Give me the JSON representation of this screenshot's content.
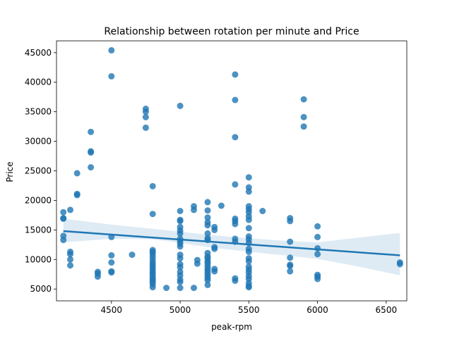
{
  "chart_data": {
    "type": "scatter",
    "title": "Relationship between rotation per minute and Price",
    "xlabel": "peak-rpm",
    "ylabel": "Price",
    "xlim": [
      4100,
      6650
    ],
    "ylim": [
      3000,
      47000
    ],
    "xticks": [
      4500,
      5000,
      5500,
      6000,
      6500
    ],
    "xtick_labels": [
      "4500",
      "5000",
      "5500",
      "6000",
      "6500"
    ],
    "yticks": [
      5000,
      10000,
      15000,
      20000,
      25000,
      30000,
      35000,
      40000,
      45000
    ],
    "ytick_labels": [
      "5000",
      "10000",
      "15000",
      "20000",
      "25000",
      "30000",
      "35000",
      "40000",
      "45000"
    ],
    "grid": false,
    "point_color": "#1f77b4",
    "regression_line": {
      "x": [
        4150,
        6600
      ],
      "y": [
        14800,
        10700
      ]
    },
    "confidence_band": {
      "x": [
        4150,
        4500,
        4800,
        5000,
        5200,
        5500,
        5800,
        6000,
        6300,
        6600
      ],
      "lower": [
        12900,
        13500,
        13400,
        12800,
        12100,
        11300,
        10600,
        10100,
        8800,
        7300
      ],
      "upper": [
        16900,
        15900,
        15200,
        14700,
        14200,
        13600,
        13100,
        12900,
        13700,
        14500
      ]
    },
    "points": [
      {
        "x": 4150,
        "y": 18000
      },
      {
        "x": 4150,
        "y": 17000
      },
      {
        "x": 4150,
        "y": 16900
      },
      {
        "x": 4150,
        "y": 14000
      },
      {
        "x": 4150,
        "y": 13300
      },
      {
        "x": 4200,
        "y": 18400
      },
      {
        "x": 4200,
        "y": 11300
      },
      {
        "x": 4200,
        "y": 10900
      },
      {
        "x": 4200,
        "y": 10000
      },
      {
        "x": 4200,
        "y": 9000
      },
      {
        "x": 4250,
        "y": 24600
      },
      {
        "x": 4250,
        "y": 21100
      },
      {
        "x": 4250,
        "y": 20900
      },
      {
        "x": 4350,
        "y": 31600
      },
      {
        "x": 4350,
        "y": 28300
      },
      {
        "x": 4350,
        "y": 28100
      },
      {
        "x": 4350,
        "y": 25600
      },
      {
        "x": 4400,
        "y": 7900
      },
      {
        "x": 4400,
        "y": 7600
      },
      {
        "x": 4400,
        "y": 7100
      },
      {
        "x": 4500,
        "y": 45400
      },
      {
        "x": 4500,
        "y": 41000
      },
      {
        "x": 4500,
        "y": 13800
      },
      {
        "x": 4500,
        "y": 10700
      },
      {
        "x": 4500,
        "y": 9500
      },
      {
        "x": 4500,
        "y": 8000
      },
      {
        "x": 4500,
        "y": 7800
      },
      {
        "x": 4650,
        "y": 10800
      },
      {
        "x": 4750,
        "y": 35500
      },
      {
        "x": 4750,
        "y": 35000
      },
      {
        "x": 4750,
        "y": 34100
      },
      {
        "x": 4750,
        "y": 32300
      },
      {
        "x": 4800,
        "y": 22400
      },
      {
        "x": 4800,
        "y": 17700
      },
      {
        "x": 4800,
        "y": 11600
      },
      {
        "x": 4800,
        "y": 11300
      },
      {
        "x": 4800,
        "y": 11000
      },
      {
        "x": 4800,
        "y": 10500
      },
      {
        "x": 4800,
        "y": 10000
      },
      {
        "x": 4800,
        "y": 9500
      },
      {
        "x": 4800,
        "y": 9100
      },
      {
        "x": 4800,
        "y": 8700
      },
      {
        "x": 4800,
        "y": 8300
      },
      {
        "x": 4800,
        "y": 7900
      },
      {
        "x": 4800,
        "y": 7600
      },
      {
        "x": 4800,
        "y": 7200
      },
      {
        "x": 4800,
        "y": 6800
      },
      {
        "x": 4800,
        "y": 6500
      },
      {
        "x": 4800,
        "y": 6200
      },
      {
        "x": 4800,
        "y": 5800
      },
      {
        "x": 4800,
        "y": 5300
      },
      {
        "x": 4900,
        "y": 5200
      },
      {
        "x": 5000,
        "y": 36000
      },
      {
        "x": 5000,
        "y": 18200
      },
      {
        "x": 5000,
        "y": 16700
      },
      {
        "x": 5000,
        "y": 16500
      },
      {
        "x": 5000,
        "y": 15500
      },
      {
        "x": 5000,
        "y": 14900
      },
      {
        "x": 5000,
        "y": 14400
      },
      {
        "x": 5000,
        "y": 13500
      },
      {
        "x": 5000,
        "y": 13100
      },
      {
        "x": 5000,
        "y": 12700
      },
      {
        "x": 5000,
        "y": 12200
      },
      {
        "x": 5000,
        "y": 10800
      },
      {
        "x": 5000,
        "y": 10200
      },
      {
        "x": 5000,
        "y": 9200
      },
      {
        "x": 5000,
        "y": 8700
      },
      {
        "x": 5000,
        "y": 7900
      },
      {
        "x": 5000,
        "y": 7300
      },
      {
        "x": 5000,
        "y": 6600
      },
      {
        "x": 5000,
        "y": 6200
      },
      {
        "x": 5000,
        "y": 5200
      },
      {
        "x": 5100,
        "y": 19000
      },
      {
        "x": 5100,
        "y": 18400
      },
      {
        "x": 5100,
        "y": 5200
      },
      {
        "x": 5125,
        "y": 9900
      },
      {
        "x": 5125,
        "y": 9300
      },
      {
        "x": 5200,
        "y": 19700
      },
      {
        "x": 5200,
        "y": 18300
      },
      {
        "x": 5200,
        "y": 17100
      },
      {
        "x": 5200,
        "y": 16300
      },
      {
        "x": 5200,
        "y": 15800
      },
      {
        "x": 5200,
        "y": 14400
      },
      {
        "x": 5200,
        "y": 13600
      },
      {
        "x": 5200,
        "y": 13300
      },
      {
        "x": 5200,
        "y": 11100
      },
      {
        "x": 5200,
        "y": 10500
      },
      {
        "x": 5200,
        "y": 10200
      },
      {
        "x": 5200,
        "y": 9700
      },
      {
        "x": 5200,
        "y": 9400
      },
      {
        "x": 5200,
        "y": 8900
      },
      {
        "x": 5200,
        "y": 8500
      },
      {
        "x": 5200,
        "y": 8100
      },
      {
        "x": 5200,
        "y": 7700
      },
      {
        "x": 5200,
        "y": 7300
      },
      {
        "x": 5200,
        "y": 6900
      },
      {
        "x": 5200,
        "y": 6500
      },
      {
        "x": 5200,
        "y": 5700
      },
      {
        "x": 5250,
        "y": 15500
      },
      {
        "x": 5250,
        "y": 15000
      },
      {
        "x": 5250,
        "y": 12100
      },
      {
        "x": 5250,
        "y": 11800
      },
      {
        "x": 5250,
        "y": 8400
      },
      {
        "x": 5250,
        "y": 8000
      },
      {
        "x": 5300,
        "y": 19100
      },
      {
        "x": 5400,
        "y": 41300
      },
      {
        "x": 5400,
        "y": 37000
      },
      {
        "x": 5400,
        "y": 30700
      },
      {
        "x": 5400,
        "y": 22700
      },
      {
        "x": 5400,
        "y": 16900
      },
      {
        "x": 5400,
        "y": 16500
      },
      {
        "x": 5400,
        "y": 16000
      },
      {
        "x": 5400,
        "y": 13500
      },
      {
        "x": 5400,
        "y": 13000
      },
      {
        "x": 5400,
        "y": 6800
      },
      {
        "x": 5400,
        "y": 6400
      },
      {
        "x": 5500,
        "y": 23900
      },
      {
        "x": 5500,
        "y": 22200
      },
      {
        "x": 5500,
        "y": 21500
      },
      {
        "x": 5500,
        "y": 19000
      },
      {
        "x": 5500,
        "y": 18500
      },
      {
        "x": 5500,
        "y": 18000
      },
      {
        "x": 5500,
        "y": 17300
      },
      {
        "x": 5500,
        "y": 16700
      },
      {
        "x": 5500,
        "y": 15300
      },
      {
        "x": 5500,
        "y": 13900
      },
      {
        "x": 5500,
        "y": 13400
      },
      {
        "x": 5500,
        "y": 12800
      },
      {
        "x": 5500,
        "y": 11800
      },
      {
        "x": 5500,
        "y": 11300
      },
      {
        "x": 5500,
        "y": 10200
      },
      {
        "x": 5500,
        "y": 9700
      },
      {
        "x": 5500,
        "y": 8800
      },
      {
        "x": 5500,
        "y": 8300
      },
      {
        "x": 5500,
        "y": 7800
      },
      {
        "x": 5500,
        "y": 7200
      },
      {
        "x": 5500,
        "y": 6700
      },
      {
        "x": 5500,
        "y": 6000
      },
      {
        "x": 5500,
        "y": 5500
      },
      {
        "x": 5500,
        "y": 5300
      },
      {
        "x": 5600,
        "y": 18200
      },
      {
        "x": 5800,
        "y": 17000
      },
      {
        "x": 5800,
        "y": 16500
      },
      {
        "x": 5800,
        "y": 13000
      },
      {
        "x": 5800,
        "y": 10300
      },
      {
        "x": 5800,
        "y": 9100
      },
      {
        "x": 5800,
        "y": 8900
      },
      {
        "x": 5800,
        "y": 8000
      },
      {
        "x": 5900,
        "y": 37100
      },
      {
        "x": 5900,
        "y": 34100
      },
      {
        "x": 5900,
        "y": 32500
      },
      {
        "x": 6000,
        "y": 15600
      },
      {
        "x": 6000,
        "y": 13800
      },
      {
        "x": 6000,
        "y": 11900
      },
      {
        "x": 6000,
        "y": 10900
      },
      {
        "x": 6000,
        "y": 7400
      },
      {
        "x": 6000,
        "y": 7100
      },
      {
        "x": 6000,
        "y": 6700
      },
      {
        "x": 6600,
        "y": 9500
      },
      {
        "x": 6600,
        "y": 9200
      }
    ]
  }
}
